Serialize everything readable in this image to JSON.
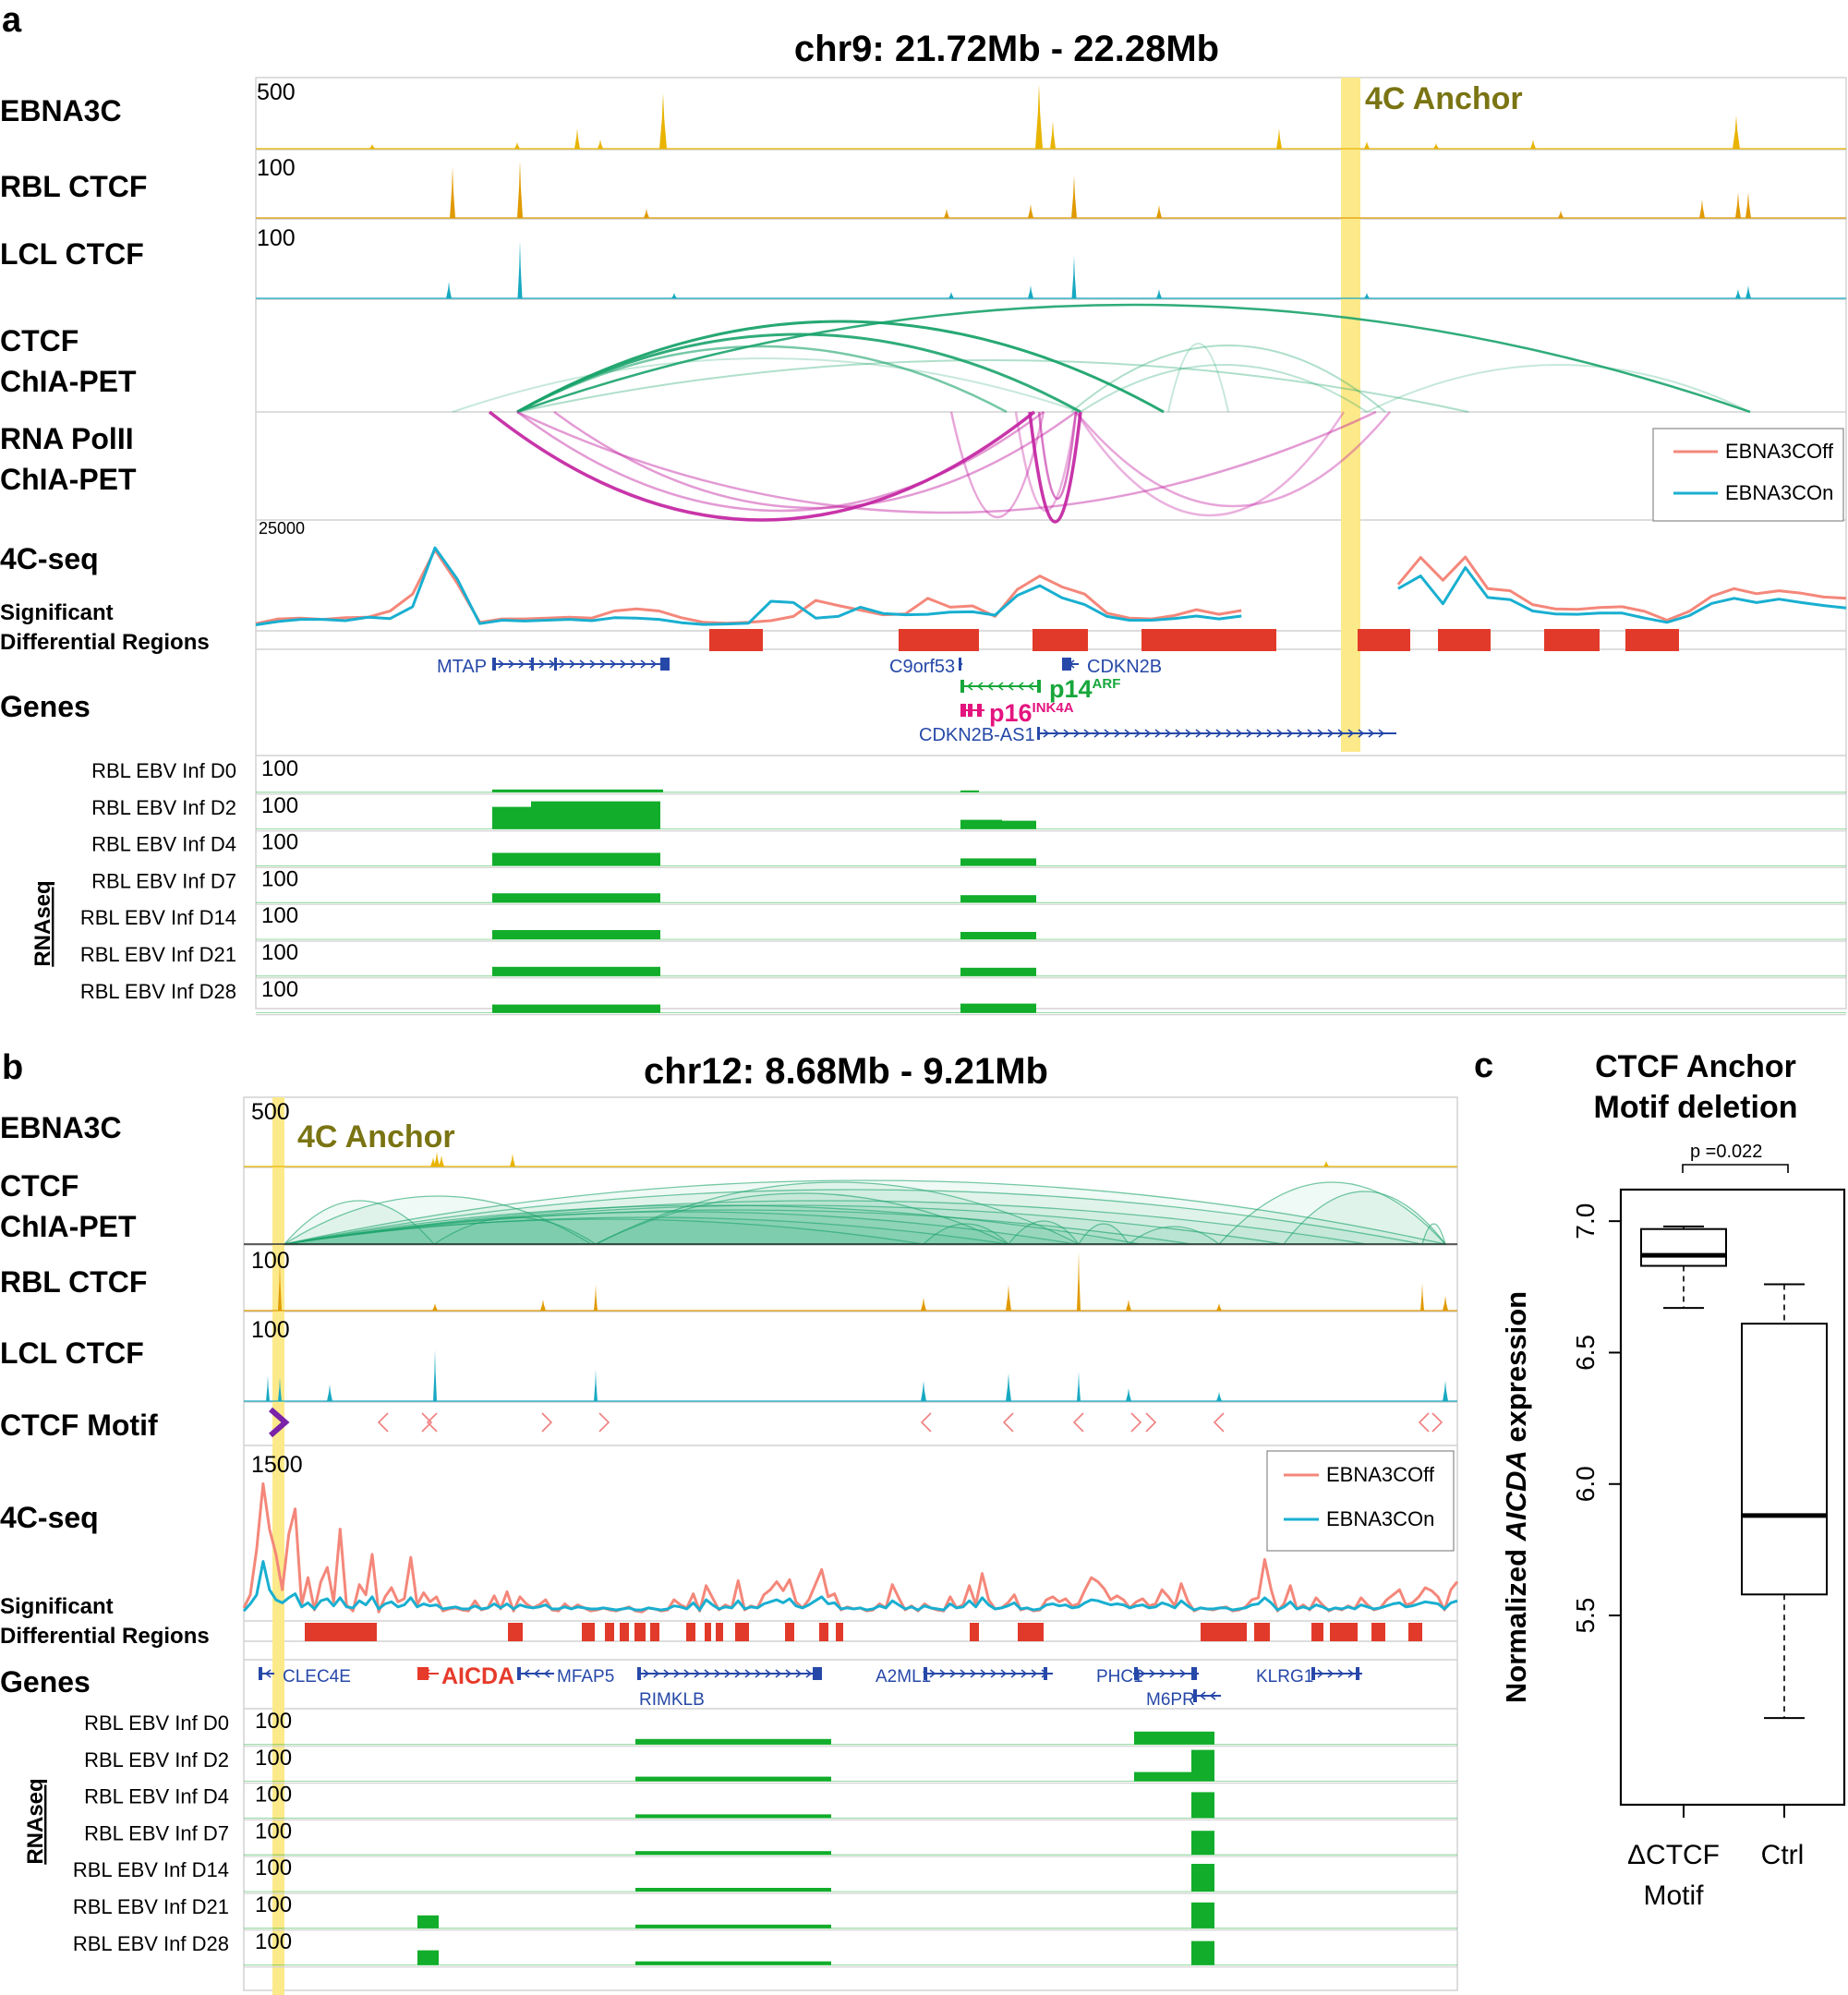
{
  "colors": {
    "ebna3c": "#e8b400",
    "rbl_ctcf": "#e09a00",
    "lcl_ctcf": "#17a9c2",
    "ctcf_chiapet": "#1aa36b",
    "polii_chiapet": "#c21fa0",
    "off": "#f4877a",
    "on": "#19afd0",
    "region": "#e23a2a",
    "gene": "#2648a8",
    "rnaseq": "#12ad2b",
    "anchor": "#fce98a",
    "anchor_text": "#7a7413",
    "p14": "#17a63a",
    "p16": "#e4147f",
    "aicda": "#e63a2b",
    "motif": "#f08080",
    "motif_anchor": "#7a22a8"
  },
  "panel_a": {
    "letter": "a",
    "title": "chr9: 21.72Mb - 22.28Mb",
    "anchor_label": "4C Anchor",
    "tracks": {
      "ebna3c": {
        "label": "EBNA3C",
        "scale": "500"
      },
      "rbl_ctcf": {
        "label": "RBL CTCF",
        "scale": "100"
      },
      "lcl_ctcf": {
        "label": "LCL CTCF",
        "scale": "100"
      },
      "ctcf_chiapet": {
        "label1": "CTCF",
        "label2": "ChIA-PET"
      },
      "polii_chiapet": {
        "label1": "RNA PolII",
        "label2": "ChIA-PET"
      },
      "fourc": {
        "label": "4C-seq",
        "scale": "25000"
      },
      "sig": {
        "label1": "Significant",
        "label2": "Differential Regions"
      },
      "genes": {
        "label": "Genes"
      },
      "rnaseq": {
        "group_label": "RNAseq"
      }
    },
    "legend": {
      "off": "EBNA3COff",
      "on": "EBNA3COn"
    },
    "genes": {
      "mtap": "MTAP",
      "c9orf53": "C9orf53",
      "cdkn2b": "CDKN2B",
      "p14": "p14",
      "p14_sup": "ARF",
      "p16": "p16",
      "p16_sup": "INK4A",
      "cdkn2b_as1": "CDKN2B-AS1"
    },
    "rnaseq_tracks": [
      {
        "label": "RBL EBV Inf D0",
        "scale": "100"
      },
      {
        "label": "RBL EBV Inf D2",
        "scale": "100"
      },
      {
        "label": "RBL EBV Inf D4",
        "scale": "100"
      },
      {
        "label": "RBL EBV Inf D7",
        "scale": "100"
      },
      {
        "label": "RBL EBV Inf D14",
        "scale": "100"
      },
      {
        "label": "RBL EBV Inf D21",
        "scale": "100"
      },
      {
        "label": "RBL EBV Inf D28",
        "scale": "100"
      }
    ]
  },
  "panel_b": {
    "letter": "b",
    "title": "chr12: 8.68Mb - 9.21Mb",
    "anchor_label": "4C Anchor",
    "tracks": {
      "ebna3c": {
        "label": "EBNA3C",
        "scale": "500"
      },
      "ctcf_chiapet": {
        "label1": "CTCF",
        "label2": "ChIA-PET"
      },
      "rbl_ctcf": {
        "label": "RBL CTCF",
        "scale": "100"
      },
      "lcl_ctcf": {
        "label": "LCL CTCF",
        "scale": "100"
      },
      "motif": {
        "label": "CTCF Motif"
      },
      "fourc": {
        "label": "4C-seq",
        "scale": "1500"
      },
      "sig": {
        "label1": "Significant",
        "label2": "Differential Regions"
      },
      "genes": {
        "label": "Genes"
      },
      "rnaseq": {
        "group_label": "RNAseq"
      }
    },
    "legend": {
      "off": "EBNA3COff",
      "on": "EBNA3COn"
    },
    "genes": {
      "clec4e": "CLEC4E",
      "aicda": "AICDA",
      "mfap5": "MFAP5",
      "rimklb": "RIMKLB",
      "a2ml1": "A2ML1",
      "phc1": "PHC1",
      "m6pr": "M6PR",
      "klrg1": "KLRG1"
    },
    "rnaseq_tracks": [
      {
        "label": "RBL EBV Inf D0",
        "scale": "100"
      },
      {
        "label": "RBL EBV Inf D2",
        "scale": "100"
      },
      {
        "label": "RBL EBV Inf D4",
        "scale": "100"
      },
      {
        "label": "RBL EBV Inf D7",
        "scale": "100"
      },
      {
        "label": "RBL EBV Inf D14",
        "scale": "100"
      },
      {
        "label": "RBL EBV Inf D21",
        "scale": "100"
      },
      {
        "label": "RBL EBV Inf D28",
        "scale": "100"
      }
    ]
  },
  "panel_c": {
    "letter": "c",
    "title1": "CTCF Anchor",
    "title2": "Motif deletion",
    "ylabel_pre": "Normalized ",
    "ylabel_em": "AICDA",
    "ylabel_post": " expression",
    "pvalue": "p =0.022",
    "xlabel_1a": "ΔCTCF",
    "xlabel_1b": "Motif",
    "xlabel_2": "Ctrl"
  },
  "chart_data": [
    {
      "type": "line",
      "panel": "a",
      "title": "chr9: 21.72Mb - 22.28Mb",
      "xlabel": "",
      "ylabel": "4C-seq",
      "ylim": [
        0,
        25000
      ],
      "series": [
        {
          "name": "EBNA3COff",
          "values": [
            1500,
            2600,
            2800,
            2500,
            2900,
            3000,
            4500,
            8500,
            19000,
            11000,
            1800,
            2600,
            2600,
            2800,
            3000,
            2800,
            4500,
            5000,
            4500,
            2900,
            1800,
            1600,
            1800,
            2200,
            3200,
            7000,
            5800,
            4700,
            3600,
            3800,
            7500,
            5400,
            5700,
            3200,
            9600,
            12800,
            10200,
            8500,
            4000,
            2800,
            2600,
            3400,
            4800,
            3700,
            4600,
            6500,
            5500,
            12400,
            13000,
            17800,
            13000,
            10800,
            17200,
            11800,
            17300,
            9800,
            9300,
            6000,
            5000,
            4900,
            5300,
            5500,
            4400,
            2300,
            4400,
            8000,
            9800,
            8600,
            9300,
            8700,
            7800,
            7500
          ]
        },
        {
          "name": "EBNA3COn",
          "values": [
            1200,
            2000,
            2500,
            2500,
            2200,
            3000,
            2700,
            5500,
            19500,
            12000,
            1500,
            2300,
            2100,
            2300,
            2500,
            2200,
            2900,
            2800,
            2500,
            1700,
            1300,
            1400,
            1600,
            6800,
            6500,
            2800,
            3200,
            5400,
            3900,
            3600,
            3700,
            4200,
            4300,
            3500,
            8200,
            10500,
            7600,
            6000,
            3200,
            2300,
            2300,
            2700,
            3300,
            2600,
            3300,
            4500,
            3300,
            7600,
            11500,
            14000,
            10400,
            9800,
            12800,
            6200,
            14800,
            7700,
            7200,
            4500,
            3800,
            3700,
            4000,
            4000,
            2800,
            1800,
            3400,
            6300,
            7500,
            6500,
            7300,
            6500,
            5800,
            5200
          ]
        }
      ]
    },
    {
      "type": "line",
      "panel": "b",
      "title": "chr12: 8.68Mb - 9.21Mb",
      "xlabel": "",
      "ylabel": "4C-seq",
      "ylim": [
        0,
        1500
      ],
      "series": [
        {
          "name": "EBNA3COff",
          "values": [
            120,
            250,
            700,
            1350,
            900,
            650,
            300,
            850,
            1100,
            150,
            420,
            100,
            380,
            520,
            180,
            900,
            150,
            90,
            350,
            250,
            650,
            80,
            230,
            320,
            180,
            210,
            620,
            150,
            270,
            180,
            230,
            90,
            110,
            120,
            100,
            90,
            190,
            100,
            120,
            240,
            110,
            280,
            90,
            230,
            160,
            120,
            150,
            200,
            100,
            90,
            160,
            110,
            150,
            120,
            90,
            100,
            120,
            100,
            90,
            110,
            130,
            90,
            80,
            120,
            110,
            90,
            100,
            200,
            150,
            120,
            260,
            90,
            340,
            220,
            100,
            150,
            120,
            390,
            100,
            140,
            120,
            250,
            300,
            380,
            290,
            400,
            180,
            120,
            200,
            350,
            500,
            230,
            260,
            100,
            130,
            110,
            120,
            90,
            100,
            160,
            120,
            350,
            220,
            100,
            140,
            90,
            160,
            120,
            100,
            90,
            230,
            120,
            150,
            340,
            150,
            460,
            200,
            110,
            120,
            170,
            250,
            100,
            120,
            90,
            100,
            200,
            230,
            180,
            210,
            140,
            160,
            300,
            420,
            380,
            310,
            200,
            240,
            200,
            120,
            180,
            210,
            140,
            160,
            300,
            230,
            140,
            360,
            190,
            90,
            120,
            110,
            100,
            120,
            130,
            90,
            100,
            130,
            200,
            220,
            600,
            300,
            90,
            160,
            340,
            110,
            150,
            100,
            220,
            150,
            90,
            120,
            100,
            140,
            110,
            220,
            150,
            100,
            120,
            200,
            250,
            300,
            150,
            170,
            230,
            320,
            290,
            230,
            100,
            300,
            380
          ]
        },
        {
          "name": "EBNA3COn",
          "values": [
            90,
            160,
            250,
            580,
            300,
            200,
            170,
            220,
            260,
            130,
            170,
            110,
            190,
            210,
            140,
            220,
            130,
            120,
            190,
            150,
            230,
            110,
            160,
            180,
            130,
            150,
            220,
            130,
            160,
            140,
            150,
            110,
            120,
            130,
            110,
            110,
            140,
            110,
            120,
            160,
            120,
            160,
            110,
            150,
            130,
            120,
            130,
            150,
            110,
            110,
            130,
            110,
            130,
            120,
            110,
            110,
            120,
            110,
            100,
            110,
            120,
            100,
            100,
            120,
            110,
            100,
            110,
            140,
            130,
            110,
            170,
            100,
            200,
            150,
            110,
            130,
            120,
            190,
            110,
            130,
            120,
            160,
            180,
            200,
            170,
            210,
            140,
            120,
            150,
            190,
            230,
            160,
            170,
            110,
            120,
            110,
            120,
            100,
            110,
            140,
            120,
            190,
            150,
            110,
            130,
            100,
            140,
            120,
            110,
            100,
            160,
            120,
            130,
            190,
            130,
            220,
            150,
            110,
            120,
            140,
            170,
            110,
            120,
            100,
            110,
            150,
            160,
            140,
            150,
            120,
            130,
            170,
            200,
            190,
            170,
            150,
            160,
            150,
            120,
            140,
            150,
            120,
            130,
            170,
            150,
            120,
            190,
            140,
            100,
            120,
            110,
            110,
            120,
            120,
            100,
            110,
            120,
            150,
            160,
            220,
            170,
            100,
            130,
            180,
            110,
            130,
            110,
            150,
            130,
            100,
            120,
            110,
            130,
            110,
            150,
            130,
            110,
            120,
            140,
            160,
            170,
            130,
            140,
            160,
            180,
            170,
            160,
            110,
            170,
            190
          ]
        }
      ]
    },
    {
      "type": "box",
      "panel": "c",
      "title": "CTCF Anchor Motif deletion",
      "xlabel": "",
      "ylabel": "Normalized AICDA expression",
      "categories": [
        "ΔCTCF Motif",
        "Ctrl"
      ],
      "ylim": [
        5.0,
        7.05
      ],
      "yticks": [
        5.5,
        6.0,
        6.5,
        7.0
      ],
      "boxes": [
        {
          "name": "ΔCTCF Motif",
          "min": 6.67,
          "q1": 6.83,
          "median": 6.87,
          "q3": 6.97,
          "max": 6.98
        },
        {
          "name": "Ctrl",
          "min": 5.11,
          "q1": 5.58,
          "median": 5.88,
          "q3": 6.61,
          "max": 6.76
        }
      ],
      "annotation": "p =0.022"
    }
  ]
}
